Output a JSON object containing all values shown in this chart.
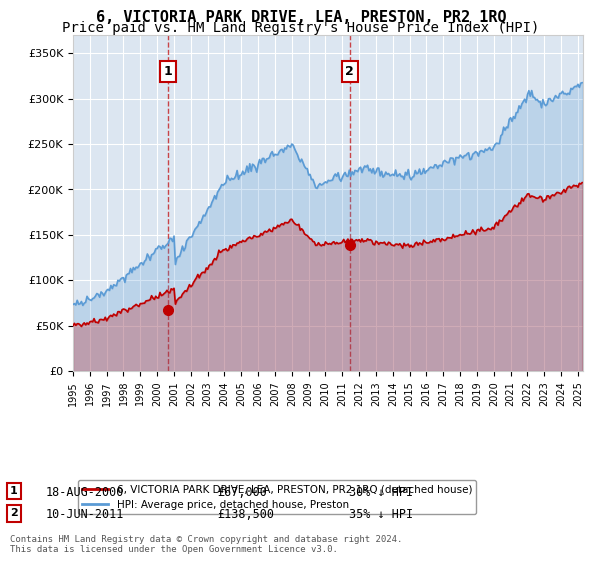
{
  "title": "6, VICTORIA PARK DRIVE, LEA, PRESTON, PR2 1RQ",
  "subtitle": "Price paid vs. HM Land Registry's House Price Index (HPI)",
  "hpi_label": "HPI: Average price, detached house, Preston",
  "price_label": "6, VICTORIA PARK DRIVE, LEA, PRESTON, PR2 1RQ (detached house)",
  "hpi_color": "#5b9bd5",
  "price_color": "#c00000",
  "marker_color": "#c00000",
  "sale1_date_x": 2000.63,
  "sale1_price": 67000,
  "sale1_label": "1",
  "sale2_date_x": 2011.44,
  "sale2_price": 138500,
  "sale2_label": "2",
  "annotation1": [
    "1",
    "18-AUG-2000",
    "£67,000",
    "30% ↓ HPI"
  ],
  "annotation2": [
    "2",
    "10-JUN-2011",
    "£138,500",
    "35% ↓ HPI"
  ],
  "footer": "Contains HM Land Registry data © Crown copyright and database right 2024.\nThis data is licensed under the Open Government Licence v3.0.",
  "ylim": [
    0,
    370000
  ],
  "xlim_start": 1995.0,
  "xlim_end": 2025.3,
  "plot_bg_color": "#dce6f1",
  "grid_color": "#ffffff",
  "title_fontsize": 11,
  "subtitle_fontsize": 10,
  "yticks": [
    0,
    50000,
    100000,
    150000,
    200000,
    250000,
    300000,
    350000
  ],
  "ytick_labels": [
    "£0",
    "£50K",
    "£100K",
    "£150K",
    "£200K",
    "£250K",
    "£300K",
    "£350K"
  ]
}
